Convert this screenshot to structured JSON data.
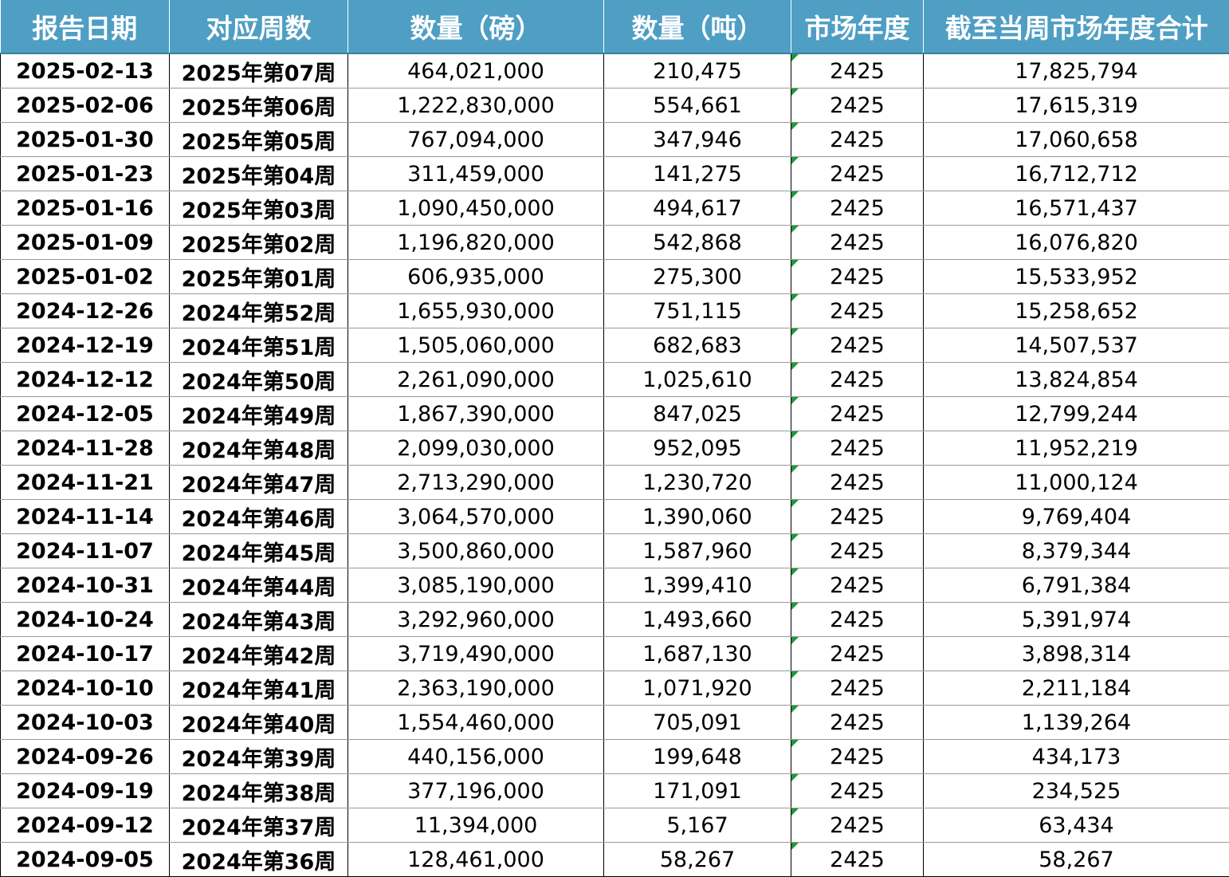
{
  "headers": [
    "报告日期",
    "对应周数",
    "数量（磅）",
    "数量（吨）",
    "市场年度",
    "截至当周市场年度合计"
  ],
  "rows": [
    [
      "2025-02-13",
      "2025年第07周",
      "464,021,000",
      "210,475",
      "2425",
      "17,825,794"
    ],
    [
      "2025-02-06",
      "2025年第06周",
      "1,222,830,000",
      "554,661",
      "2425",
      "17,615,319"
    ],
    [
      "2025-01-30",
      "2025年第05周",
      "767,094,000",
      "347,946",
      "2425",
      "17,060,658"
    ],
    [
      "2025-01-23",
      "2025年第04周",
      "311,459,000",
      "141,275",
      "2425",
      "16,712,712"
    ],
    [
      "2025-01-16",
      "2025年第03周",
      "1,090,450,000",
      "494,617",
      "2425",
      "16,571,437"
    ],
    [
      "2025-01-09",
      "2025年第02周",
      "1,196,820,000",
      "542,868",
      "2425",
      "16,076,820"
    ],
    [
      "2025-01-02",
      "2025年第01周",
      "606,935,000",
      "275,300",
      "2425",
      "15,533,952"
    ],
    [
      "2024-12-26",
      "2024年第52周",
      "1,655,930,000",
      "751,115",
      "2425",
      "15,258,652"
    ],
    [
      "2024-12-19",
      "2024年第51周",
      "1,505,060,000",
      "682,683",
      "2425",
      "14,507,537"
    ],
    [
      "2024-12-12",
      "2024年第50周",
      "2,261,090,000",
      "1,025,610",
      "2425",
      "13,824,854"
    ],
    [
      "2024-12-05",
      "2024年第49周",
      "1,867,390,000",
      "847,025",
      "2425",
      "12,799,244"
    ],
    [
      "2024-11-28",
      "2024年第48周",
      "2,099,030,000",
      "952,095",
      "2425",
      "11,952,219"
    ],
    [
      "2024-11-21",
      "2024年第47周",
      "2,713,290,000",
      "1,230,720",
      "2425",
      "11,000,124"
    ],
    [
      "2024-11-14",
      "2024年第46周",
      "3,064,570,000",
      "1,390,060",
      "2425",
      "9,769,404"
    ],
    [
      "2024-11-07",
      "2024年第45周",
      "3,500,860,000",
      "1,587,960",
      "2425",
      "8,379,344"
    ],
    [
      "2024-10-31",
      "2024年第44周",
      "3,085,190,000",
      "1,399,410",
      "2425",
      "6,791,384"
    ],
    [
      "2024-10-24",
      "2024年第43周",
      "3,292,960,000",
      "1,493,660",
      "2425",
      "5,391,974"
    ],
    [
      "2024-10-17",
      "2024年第42周",
      "3,719,490,000",
      "1,687,130",
      "2425",
      "3,898,314"
    ],
    [
      "2024-10-10",
      "2024年第41周",
      "2,363,190,000",
      "1,071,920",
      "2425",
      "2,211,184"
    ],
    [
      "2024-10-03",
      "2024年第40周",
      "1,554,460,000",
      "705,091",
      "2425",
      "1,139,264"
    ],
    [
      "2024-09-26",
      "2024年第39周",
      "440,156,000",
      "199,648",
      "2425",
      "434,173"
    ],
    [
      "2024-09-19",
      "2024年第38周",
      "377,196,000",
      "171,091",
      "2425",
      "234,525"
    ],
    [
      "2024-09-12",
      "2024年第37周",
      "11,394,000",
      "5,167",
      "2425",
      "63,434"
    ],
    [
      "2024-09-05",
      "2024年第36周",
      "128,461,000",
      "58,267",
      "2425",
      "58,267"
    ]
  ],
  "colors": {
    "header_bg": "#4f9ec3",
    "header_text": "#ffffff",
    "cell_flag": "#1a9a3a"
  }
}
